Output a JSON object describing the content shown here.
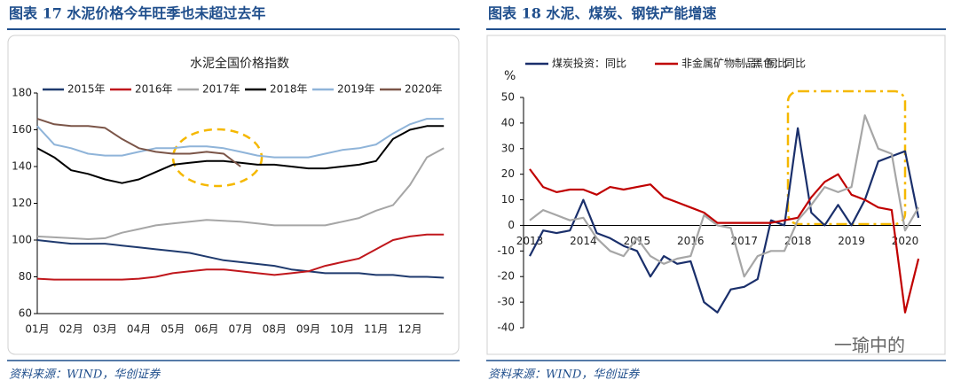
{
  "watermark": "一瑜中的",
  "chart_data": [
    {
      "type": "line",
      "caption": "图表 17   水泥价格今年旺季也未超过去年",
      "title": "水泥全国价格指数",
      "source": "资料来源：WIND，华创证券",
      "categories": [
        "01月",
        null,
        "02月",
        null,
        "03月",
        null,
        "04月",
        null,
        "05月",
        null,
        "06月",
        null,
        "07月",
        null,
        "08月",
        null,
        "09月",
        null,
        "10月",
        null,
        "11月",
        null,
        "12月",
        null,
        null
      ],
      "ylim": [
        60,
        180
      ],
      "yticks": [
        60,
        80,
        100,
        120,
        140,
        160,
        180
      ],
      "series": [
        {
          "name": "2015年",
          "color": "#1f3a6e",
          "values": [
            100,
            99,
            98,
            98,
            98,
            97,
            96,
            95,
            94,
            93,
            91,
            89,
            88,
            87,
            86,
            84,
            83,
            82,
            82,
            82,
            81,
            81,
            80,
            80,
            79.5
          ]
        },
        {
          "name": "2016年",
          "color": "#c0171c",
          "values": [
            79,
            78.5,
            78.5,
            78.5,
            78.5,
            78.5,
            79,
            80,
            82,
            83,
            84,
            84,
            83,
            82,
            81,
            82,
            83,
            86,
            88,
            90,
            95,
            100,
            102,
            103,
            103
          ]
        },
        {
          "name": "2017年",
          "color": "#a6a6a6",
          "values": [
            102,
            101.5,
            101,
            100.5,
            101,
            104,
            106,
            108,
            109,
            110,
            111,
            110.5,
            110,
            109,
            108,
            108,
            108,
            108,
            110,
            112,
            116,
            119,
            130,
            145,
            150
          ]
        },
        {
          "name": "2018年",
          "color": "#000000",
          "values": [
            150,
            145,
            138,
            136,
            133,
            131,
            133,
            137,
            141,
            142,
            143,
            143,
            142,
            141,
            141,
            140,
            139,
            139,
            140,
            141,
            143,
            155,
            160,
            162,
            162
          ]
        },
        {
          "name": "2019年",
          "color": "#8fb4d9",
          "values": [
            162,
            152,
            150,
            147,
            146,
            146,
            148,
            150,
            150,
            151,
            151,
            150,
            148,
            146,
            145,
            145,
            145,
            147,
            149,
            150,
            152,
            158,
            163,
            166,
            166
          ]
        },
        {
          "name": "2020年",
          "color": "#7b5548",
          "values": [
            166,
            163,
            162,
            162,
            161,
            155,
            150,
            148,
            147,
            147,
            148,
            147,
            140,
            null,
            null,
            null,
            null,
            null,
            null,
            null,
            null,
            null,
            null,
            null,
            null
          ]
        }
      ]
    },
    {
      "type": "line",
      "caption": "图表 18   水泥、煤炭、钢铁产能增速",
      "source": "资料来源：WIND，华创证券",
      "y_label": "%",
      "categories": [
        "2013",
        null,
        null,
        null,
        "2014",
        null,
        null,
        null,
        "2015",
        null,
        null,
        null,
        "2016",
        null,
        null,
        null,
        "2017",
        null,
        null,
        null,
        "2018",
        null,
        null,
        null,
        "2019",
        null,
        null,
        null,
        "2020",
        null
      ],
      "ylim": [
        -40,
        50
      ],
      "yticks": [
        -40,
        -30,
        -20,
        -10,
        0,
        10,
        20,
        30,
        40,
        50
      ],
      "series": [
        {
          "name": "煤炭投资：同比",
          "color": "#1a2f6b",
          "values": [
            -12,
            -2,
            -3,
            -2,
            10,
            -3,
            -5,
            -8,
            -10,
            -20,
            -12,
            -15,
            -14,
            -30,
            -34,
            -25,
            -24,
            -21,
            2,
            0,
            38,
            5,
            0,
            8,
            0,
            10,
            25,
            27,
            29,
            3
          ]
        },
        {
          "name": "非金属矿物制品：同比",
          "color": "#c00000",
          "values": [
            22,
            15,
            13,
            14,
            14,
            12,
            15,
            14,
            15,
            16,
            11,
            9,
            7,
            5,
            1,
            1,
            1,
            1,
            1,
            2,
            3,
            11,
            17,
            20,
            12,
            10,
            7,
            6,
            -34,
            -13
          ]
        },
        {
          "name": "黑色：同比",
          "color": "#a6a6a6",
          "values": [
            2,
            6,
            4,
            2,
            3,
            -5,
            -10,
            -12,
            -5,
            -12,
            -15,
            -13,
            -12,
            4,
            0,
            -1,
            -20,
            -12,
            -10,
            -10,
            2,
            8,
            15,
            13,
            15,
            43,
            30,
            28,
            -2,
            7
          ]
        }
      ]
    }
  ]
}
